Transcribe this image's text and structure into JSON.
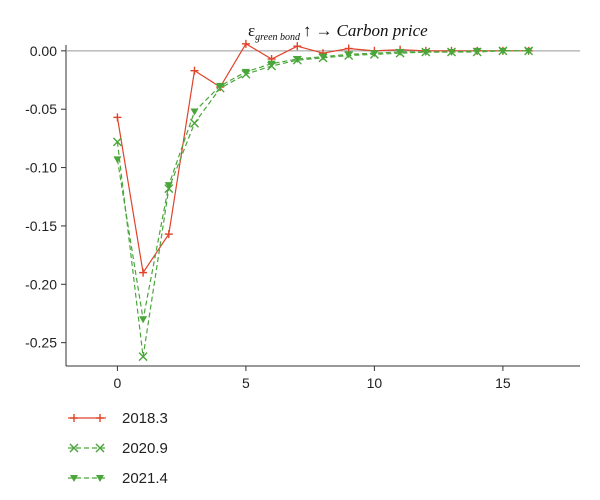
{
  "chart_data": {
    "type": "line",
    "title": {
      "symbol": "ε",
      "subscript": "green bond",
      "arrow_up": "↑",
      "arrow_right": "→",
      "target": "Carbon price"
    },
    "xlabel": "",
    "ylabel": "",
    "xlim": [
      -2,
      18
    ],
    "ylim": [
      -0.27,
      0.005
    ],
    "xticks": [
      0,
      5,
      10,
      15
    ],
    "yticks": [
      0.0,
      -0.05,
      -0.1,
      -0.15,
      -0.2,
      -0.25
    ],
    "ytick_labels": [
      "0.00",
      "-0.05",
      "-0.10",
      "-0.15",
      "-0.20",
      "-0.25"
    ],
    "zero_line": true,
    "grid": false,
    "legend_position": "below",
    "x": [
      0,
      1,
      2,
      3,
      4,
      5,
      6,
      7,
      8,
      9,
      10,
      11,
      12,
      13,
      14,
      15,
      16
    ],
    "series": [
      {
        "name": "2018.3",
        "color": "#e0432a",
        "marker": "plus",
        "dashed": false,
        "values": [
          -0.057,
          -0.19,
          -0.157,
          -0.017,
          -0.031,
          0.006,
          -0.007,
          0.004,
          -0.002,
          0.002,
          0.0,
          0.001,
          0.0,
          0.0,
          0.0,
          0.0,
          0.0
        ]
      },
      {
        "name": "2020.9",
        "color": "#4aa63a",
        "marker": "x",
        "dashed": true,
        "values": [
          -0.078,
          -0.262,
          -0.118,
          -0.062,
          -0.032,
          -0.02,
          -0.013,
          -0.008,
          -0.006,
          -0.004,
          -0.003,
          -0.002,
          -0.001,
          -0.001,
          -0.001,
          0.0,
          0.0
        ]
      },
      {
        "name": "2021.4",
        "color": "#4aa63a",
        "marker": "triangle-down",
        "dashed": true,
        "values": [
          -0.093,
          -0.23,
          -0.115,
          -0.052,
          -0.03,
          -0.018,
          -0.011,
          -0.007,
          -0.005,
          -0.003,
          -0.002,
          -0.001,
          -0.001,
          -0.001,
          0.0,
          0.0,
          0.0
        ]
      }
    ]
  }
}
